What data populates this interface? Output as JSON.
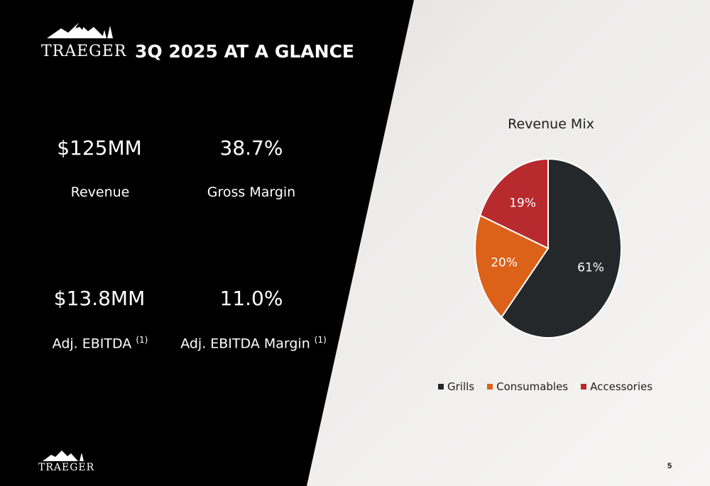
{
  "brand": {
    "name": "TRAEGER",
    "bg_dark": "#000000",
    "text_light": "#ffffff"
  },
  "header": {
    "title": "3Q 2025 AT A GLANCE"
  },
  "kpis": [
    {
      "value": "$125MM",
      "label": "Revenue",
      "footnote": ""
    },
    {
      "value": "38.7%",
      "label": "Gross Margin",
      "footnote": ""
    },
    {
      "value": "$13.8MM",
      "label": "Adj. EBITDA",
      "footnote": "(1)"
    },
    {
      "value": "11.0%",
      "label": "Adj. EBITDA Margin",
      "footnote": "(1)"
    }
  ],
  "chart_data": {
    "type": "pie",
    "title": "Revenue Mix",
    "series": [
      {
        "name": "Grills",
        "value": 61,
        "label": "61%",
        "color": "#25282a"
      },
      {
        "name": "Consumables",
        "value": 20,
        "label": "20%",
        "color": "#dc6119"
      },
      {
        "name": "Accessories",
        "value": 19,
        "label": "19%",
        "color": "#b72a2e"
      }
    ],
    "legend_position": "bottom"
  },
  "footer": {
    "page_number": "5"
  }
}
